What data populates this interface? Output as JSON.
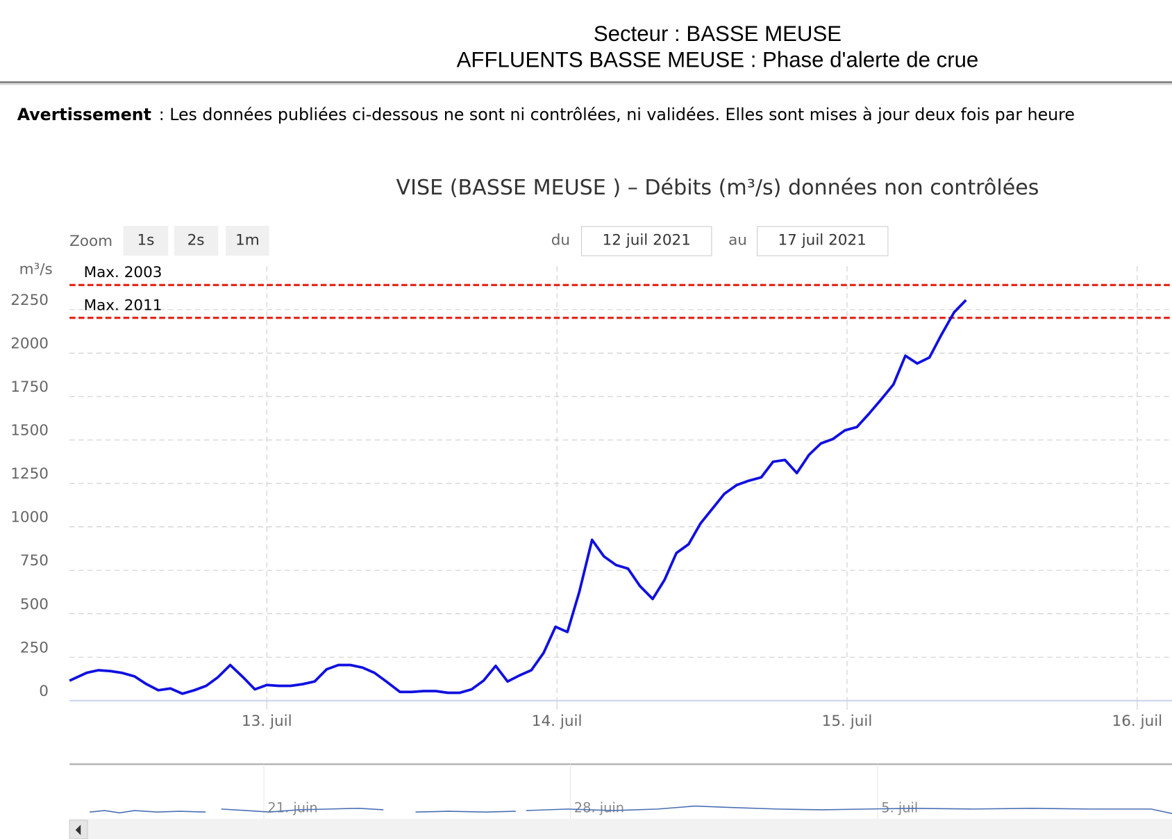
{
  "header": {
    "sector": "Secteur : BASSE MEUSE",
    "phase": "AFFLUENTS BASSE MEUSE : Phase d'alerte de crue"
  },
  "warning": {
    "label": "Avertissement",
    "text": ": Les données publiées ci-dessous ne sont ni contrôlées, ni validées. Elles sont mises à jour deux fois par heure"
  },
  "controls": {
    "zoom_label": "Zoom",
    "zoom_buttons": [
      "1s",
      "2s",
      "1m"
    ],
    "from_label": "du",
    "from": "12 juil 2021",
    "to_label": "au",
    "to": "17 juil 2021"
  },
  "navigator": {
    "labels": [
      "21. juin",
      "28. juin",
      "5. juil"
    ]
  },
  "chart_data": {
    "type": "line",
    "title": "VISE (BASSE MEUSE ) – Débits (m³/s) données non contrôlées",
    "y_unit": "m³/s",
    "color": "#1010e0",
    "grid": true,
    "x": [
      12.32,
      12.379,
      12.42,
      12.461,
      12.5,
      12.544,
      12.585,
      12.626,
      12.668,
      12.709,
      12.75,
      12.791,
      12.832,
      12.874,
      12.918,
      12.959,
      13.0,
      13.041,
      13.082,
      13.124,
      13.165,
      13.206,
      13.247,
      13.289,
      13.33,
      13.371,
      13.412,
      13.459,
      13.5,
      13.541,
      13.582,
      13.624,
      13.665,
      13.706,
      13.747,
      13.789,
      13.83,
      13.871,
      13.912,
      13.954,
      13.995,
      14.036,
      14.077,
      14.121,
      14.162,
      14.204,
      14.245,
      14.286,
      14.33,
      14.371,
      14.412,
      14.454,
      14.495,
      14.536,
      14.577,
      14.619,
      14.66,
      14.704,
      14.745,
      14.786,
      14.827,
      14.869,
      14.91,
      14.951,
      14.992,
      15.034,
      15.075,
      15.116,
      15.16,
      15.201,
      15.242,
      15.284,
      15.325,
      15.369,
      15.41
    ],
    "values": [
      115,
      160,
      175,
      170,
      160,
      140,
      95,
      60,
      70,
      40,
      60,
      85,
      135,
      205,
      135,
      65,
      90,
      85,
      85,
      95,
      110,
      180,
      205,
      205,
      190,
      160,
      110,
      50,
      50,
      55,
      55,
      45,
      45,
      65,
      115,
      200,
      110,
      145,
      175,
      275,
      425,
      395,
      625,
      925,
      830,
      780,
      760,
      660,
      585,
      695,
      850,
      900,
      1020,
      1105,
      1190,
      1240,
      1265,
      1285,
      1375,
      1385,
      1310,
      1415,
      1480,
      1505,
      1555,
      1575,
      1650,
      1730,
      1820,
      1985,
      1940,
      1975,
      2105,
      2235,
      2305
    ],
    "xlim": [
      12.32,
      16.12
    ],
    "xticks": [
      {
        "value": 13,
        "label": "13. juil"
      },
      {
        "value": 14,
        "label": "14. juil"
      },
      {
        "value": 15,
        "label": "15. juil"
      },
      {
        "value": 16,
        "label": "16. juil"
      }
    ],
    "ylim": [
      0,
      2500
    ],
    "yticks": [
      0,
      250,
      500,
      750,
      1000,
      1250,
      1500,
      1750,
      2000,
      2250
    ],
    "plot_lines": [
      {
        "label": "Max. 2003",
        "value": 2392,
        "color": "#e32a1d"
      },
      {
        "label": "Max. 2011",
        "value": 2203,
        "color": "#e32a1d"
      }
    ]
  }
}
